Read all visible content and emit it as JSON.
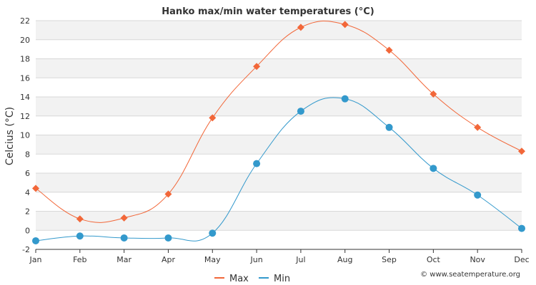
{
  "chart_data": {
    "type": "line",
    "title": "Hanko max/min water temperatures (°C)",
    "xlabel": "",
    "ylabel": "Celcius (°C)",
    "categories": [
      "Jan",
      "Feb",
      "Mar",
      "Apr",
      "May",
      "Jun",
      "Jul",
      "Aug",
      "Sep",
      "Oct",
      "Nov",
      "Dec"
    ],
    "ylim": [
      -2,
      22
    ],
    "yticks": [
      "-2",
      "0",
      "2",
      "4",
      "6",
      "8",
      "10",
      "12",
      "14",
      "16",
      "18",
      "20",
      "22"
    ],
    "grid": true,
    "legend_position": "bottom-center",
    "series": [
      {
        "name": "Max",
        "color": "#f26739",
        "marker": "diamond",
        "values": [
          4.4,
          1.2,
          1.3,
          3.8,
          11.8,
          17.2,
          21.3,
          21.6,
          18.9,
          14.3,
          10.8,
          8.3
        ]
      },
      {
        "name": "Min",
        "color": "#3399cc",
        "marker": "circle",
        "values": [
          -1.1,
          -0.6,
          -0.8,
          -0.8,
          -0.3,
          7.0,
          12.5,
          13.8,
          10.8,
          6.5,
          3.7,
          0.2
        ]
      }
    ]
  },
  "credit": "© www.seatemperature.org",
  "colors": {
    "band": "#f2f2f2",
    "grid": "#d8d8d8",
    "axis": "#333333"
  }
}
